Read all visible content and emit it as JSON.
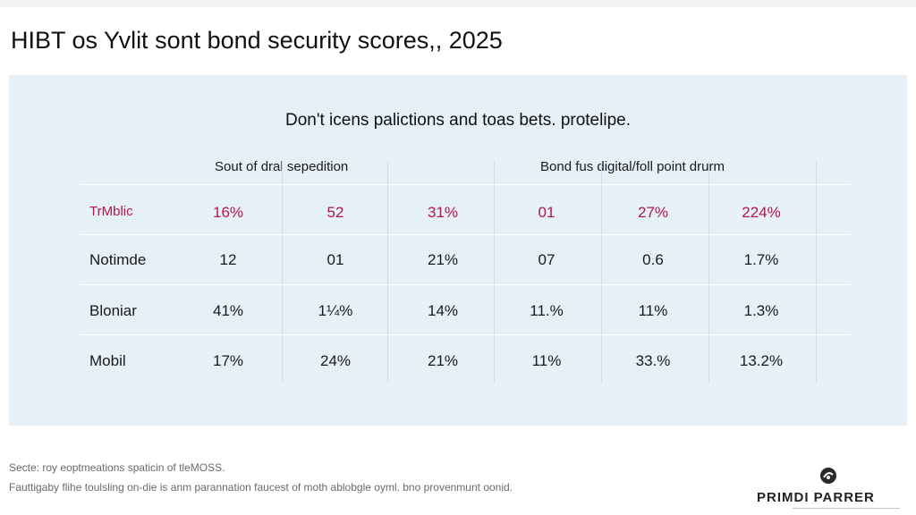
{
  "header": {
    "title": "HIBT os Yvlit sont bond security scores,, 2025"
  },
  "chart_data": {
    "type": "table",
    "title": "HIBT os Yvlit sont bond security scores,, 2025",
    "subtitle": "Don't icens palictions and toas bets. protelipe.",
    "column_groups": [
      "Sout of dral sepedition",
      "Bond fus digital/foll point drurm"
    ],
    "rows": [
      {
        "label": "TrMblic",
        "highlight": true,
        "cells": [
          "16%",
          "52",
          "31%",
          "01",
          "27%",
          "224%"
        ]
      },
      {
        "label": "Notimde",
        "highlight": false,
        "cells": [
          "12",
          "01",
          "21%",
          "07",
          "0.6",
          "1.7%"
        ]
      },
      {
        "label": "Bloniar",
        "highlight": false,
        "cells": [
          "41%",
          "1¼%",
          "14%",
          "11.%",
          "11%",
          "1.3%"
        ]
      },
      {
        "label": "Mobil",
        "highlight": false,
        "cells": [
          "17%",
          "24%",
          "21%",
          "11%",
          "33.%",
          "13.2%"
        ]
      }
    ],
    "colors": {
      "panel": "#e6f0f8",
      "highlight": "#b4154a",
      "text": "#1a1a1a"
    },
    "grid": true
  },
  "footer": {
    "line1": "Secte: roy eoptmeations spaticin of tleMOSS.",
    "line2": "Fauttigaby flihe toulsling on-die is anm parannation faucest of moth ablobgle oyml. bno provenmunt oonid."
  },
  "brand": {
    "name": "PRIMDI PARRER",
    "icon": "brand-logo-icon"
  }
}
